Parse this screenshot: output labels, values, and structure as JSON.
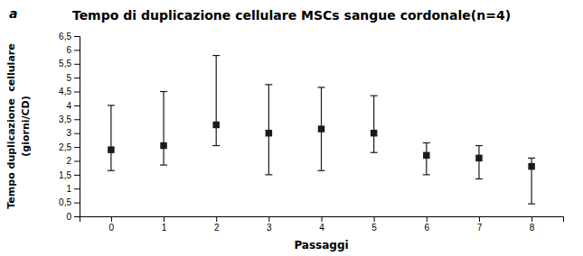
{
  "chart_data": {
    "type": "scatter",
    "title": "Tempo di duplicazione cellulare MSCs sangue cordonale(n=4)",
    "xlabel": "Passaggi",
    "ylabel": [
      "Tempo duplicazione  cellulare",
      "(giorni/CD)"
    ],
    "annotations": [
      "a"
    ],
    "x": [
      0,
      1,
      2,
      3,
      4,
      5,
      6,
      7,
      8
    ],
    "values": [
      2.4,
      2.55,
      3.3,
      3.0,
      3.15,
      3.0,
      2.2,
      2.1,
      1.8
    ],
    "yerr_lower": [
      0.75,
      0.7,
      0.75,
      1.5,
      1.5,
      0.7,
      0.7,
      0.75,
      1.35
    ],
    "yerr_upper": [
      1.6,
      1.95,
      2.5,
      1.75,
      1.5,
      1.35,
      0.45,
      0.45,
      0.3
    ],
    "marker": "square",
    "color": "#1a1a1a",
    "grid": false,
    "xlim": [
      -0.6,
      8.6
    ],
    "xticks": [
      0,
      1,
      2,
      3,
      4,
      5,
      6,
      7,
      8
    ],
    "ylim": [
      0,
      6.5
    ],
    "yticks": [
      0,
      {
        "value": 0.5,
        "label": "0,5"
      },
      1,
      {
        "value": 1.5,
        "label": "1,5"
      },
      2,
      {
        "value": 2.5,
        "label": "2,5"
      },
      3,
      {
        "value": 3.5,
        "label": "3,5"
      },
      4,
      {
        "value": 4.5,
        "label": "4,5"
      },
      5,
      {
        "value": 5.5,
        "label": "5,5"
      },
      6,
      {
        "value": 6.5,
        "label": "6,5"
      }
    ]
  }
}
